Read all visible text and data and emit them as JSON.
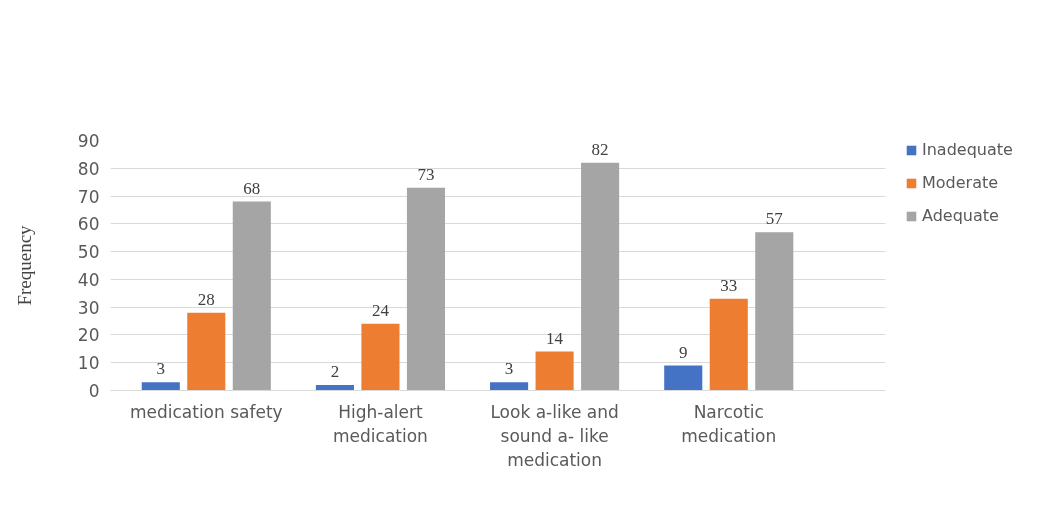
{
  "chart_data": {
    "type": "bar",
    "ylabel": "Frequency",
    "categories": [
      "medication safety",
      "High-alert medication",
      "Look a-like and sound a- like medication",
      "Narcotic medication"
    ],
    "series": [
      {
        "name": "Inadequate",
        "color": "#4472c4",
        "values": [
          3,
          2,
          3,
          9
        ]
      },
      {
        "name": "Moderate",
        "color": "#ed7d31",
        "values": [
          28,
          24,
          14,
          33
        ]
      },
      {
        "name": "Adequate",
        "color": "#a5a5a5",
        "values": [
          68,
          73,
          82,
          57
        ]
      }
    ],
    "ylim": [
      0,
      90
    ],
    "yticks": [
      0,
      10,
      20,
      30,
      40,
      50,
      60,
      70,
      80,
      90
    ],
    "grid": "y",
    "legend": "top right",
    "data_labels": true
  }
}
